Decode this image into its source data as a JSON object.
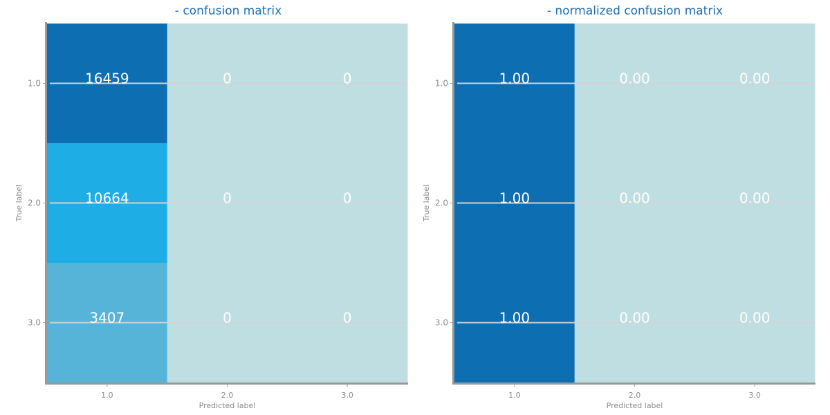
{
  "colors": {
    "low": "#bfdee2",
    "mid": "#56b4d9",
    "midhigh": "#1eade5",
    "high": "#0e6eb2",
    "title": "#1f6fb0",
    "axis": "#999999",
    "tick_text": "#8c8c8c",
    "gridline": "#d3d3d3",
    "cell_text": "#ffffff"
  },
  "chart_data": [
    {
      "type": "heatmap",
      "title": "- confusion matrix",
      "xlabel": "Predicted label",
      "ylabel": "True label",
      "x_categories": [
        "1.0",
        "2.0",
        "3.0"
      ],
      "y_categories": [
        "1.0",
        "2.0",
        "3.0"
      ],
      "values": [
        [
          16459,
          0,
          0
        ],
        [
          10664,
          0,
          0
        ],
        [
          3407,
          0,
          0
        ]
      ],
      "cell_labels": [
        [
          "16459",
          "0",
          "0"
        ],
        [
          "10664",
          "0",
          "0"
        ],
        [
          "3407",
          "0",
          "0"
        ]
      ],
      "grid": true
    },
    {
      "type": "heatmap",
      "title": "- normalized confusion matrix",
      "xlabel": "Predicted label",
      "ylabel": "True label",
      "x_categories": [
        "1.0",
        "2.0",
        "3.0"
      ],
      "y_categories": [
        "1.0",
        "2.0",
        "3.0"
      ],
      "values": [
        [
          1.0,
          0.0,
          0.0
        ],
        [
          1.0,
          0.0,
          0.0
        ],
        [
          1.0,
          0.0,
          0.0
        ]
      ],
      "cell_labels": [
        [
          "1.00",
          "0.00",
          "0.00"
        ],
        [
          "1.00",
          "0.00",
          "0.00"
        ],
        [
          "1.00",
          "0.00",
          "0.00"
        ]
      ],
      "grid": true
    }
  ]
}
